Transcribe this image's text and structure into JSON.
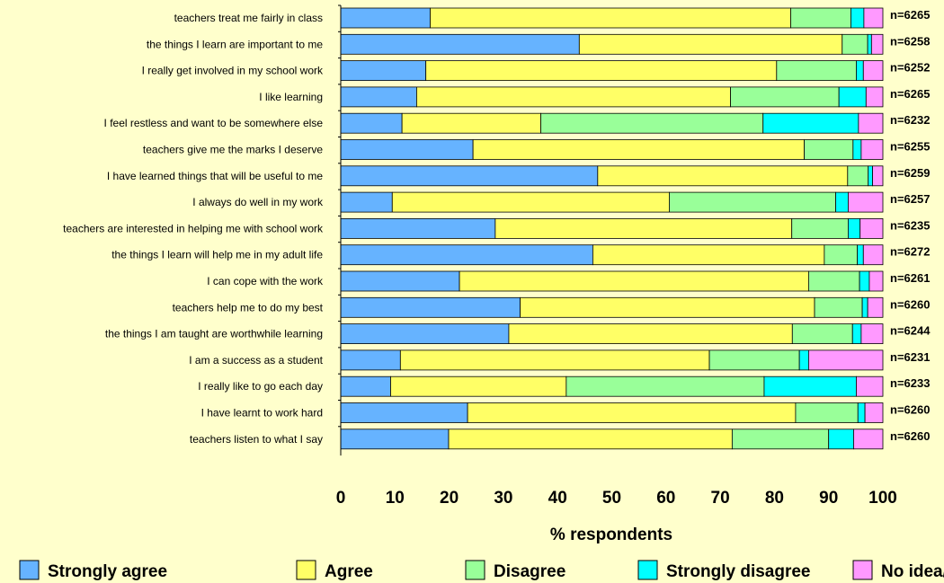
{
  "chart_data": {
    "type": "bar",
    "stacked": true,
    "orientation": "horizontal",
    "title": "",
    "xlabel": "% respondents",
    "ylabel": "",
    "xlim": [
      0,
      100
    ],
    "xticks": [
      0,
      10,
      20,
      30,
      40,
      50,
      60,
      70,
      80,
      90,
      100
    ],
    "grid": false,
    "legend_position": "bottom",
    "categories": [
      "teachers treat me fairly in class",
      "the things I learn are important to me",
      "I really get involved in my school work",
      "I like learning",
      "I feel restless and want to be somewhere else",
      "teachers give me the marks I deserve",
      "I have learned things that will be useful to me",
      "I always do well in my work",
      "teachers are interested in helping me with school work",
      "the things I learn will help me in my adult life",
      "I can cope with the work",
      "teachers help me to do my best",
      "the things I am taught are worthwhile learning",
      "I am a success as a student",
      "I really like to go each day",
      "I have learnt to work hard",
      "teachers listen to what I say"
    ],
    "n_labels": [
      "n=6265",
      "n=6258",
      "n=6252",
      "n=6265",
      "n=6232",
      "n=6255",
      "n=6259",
      "n=6257",
      "n=6235",
      "n=6272",
      "n=6261",
      "n=6260",
      "n=6244",
      "n=6231",
      "n=6233",
      "n=6260",
      "n=6260"
    ],
    "series": [
      {
        "name": "Strongly agree",
        "color": "#66B3FF",
        "values": [
          16.5,
          44,
          15.7,
          14,
          11.3,
          24.4,
          47.4,
          9.5,
          28.5,
          46.5,
          21.9,
          33.1,
          31,
          11,
          9.2,
          23.4,
          19.9
        ]
      },
      {
        "name": "Agree",
        "color": "#FFFF66",
        "values": [
          66.5,
          48.5,
          64.7,
          57.9,
          25.6,
          61.1,
          46.1,
          51.1,
          54.7,
          42.7,
          64.4,
          54.3,
          52.3,
          57,
          32.4,
          60.5,
          52.3
        ]
      },
      {
        "name": "Disagree",
        "color": "#99FF99",
        "values": [
          11.1,
          4.7,
          14.7,
          20,
          41,
          9,
          3.8,
          30.7,
          10.4,
          6.1,
          9.4,
          8.8,
          11.1,
          16.6,
          36.5,
          11.5,
          17.8
        ]
      },
      {
        "name": "Strongly disagree",
        "color": "#00FFFF",
        "values": [
          2.4,
          0.7,
          1.3,
          5,
          17.6,
          1.5,
          0.8,
          2.3,
          2.2,
          1.1,
          1.8,
          1,
          1.6,
          1.7,
          17,
          1.3,
          4.6
        ]
      },
      {
        "name": "No idea/opinion",
        "color": "#FF99FF",
        "values": [
          3.5,
          2.1,
          3.6,
          3.1,
          4.5,
          4,
          1.9,
          6.4,
          4.2,
          3.6,
          2.5,
          2.8,
          4,
          13.7,
          4.9,
          3.3,
          5.4
        ]
      }
    ]
  }
}
